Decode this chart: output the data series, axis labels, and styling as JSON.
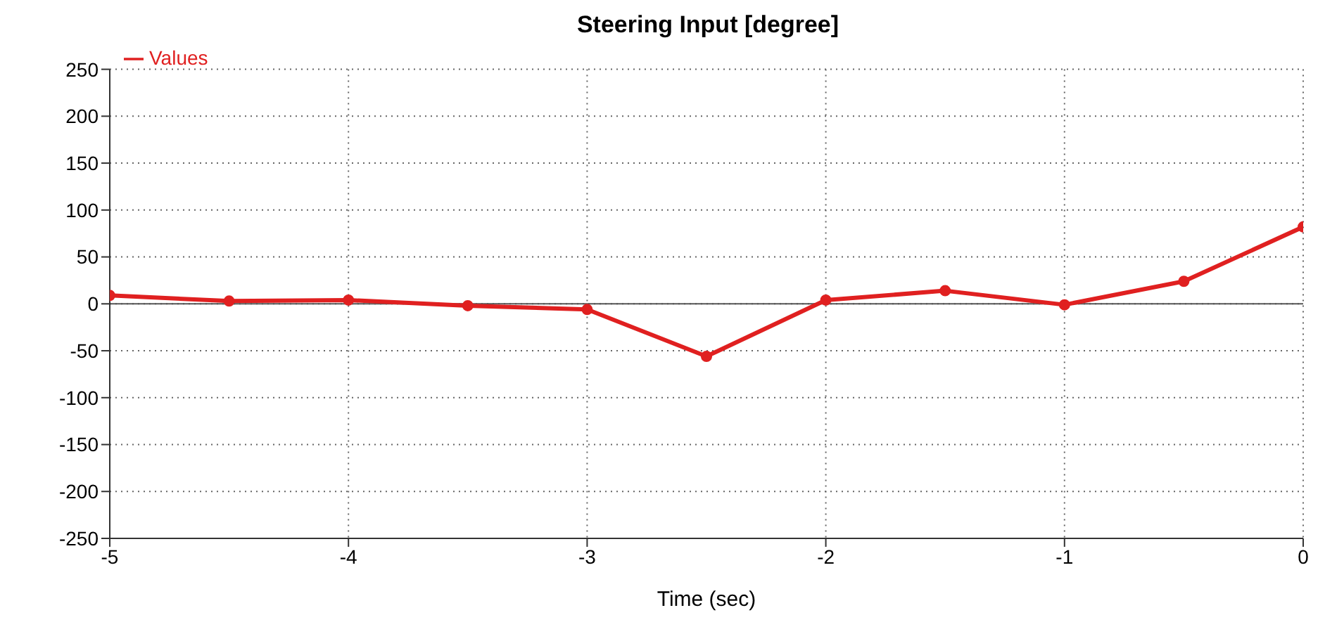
{
  "chart_data": {
    "type": "line",
    "title": "Steering Input [degree]",
    "xlabel": "Time (sec)",
    "x": [
      -5,
      -4.5,
      -4,
      -3.5,
      -3,
      -2.5,
      -2,
      -1.5,
      -1,
      -0.5,
      0
    ],
    "series": [
      {
        "name": "Values",
        "color": "#e02020",
        "values": [
          9,
          3,
          4,
          -2,
          -6,
          -56,
          4,
          14,
          -1,
          24,
          82
        ]
      }
    ],
    "xlim": [
      -5,
      0
    ],
    "xticks": [
      -5,
      -4,
      -3,
      -2,
      -1,
      0
    ],
    "ylim": [
      -250,
      250
    ],
    "yticks": [
      -250,
      -200,
      -150,
      -100,
      -50,
      0,
      50,
      100,
      150,
      200,
      250
    ],
    "ref_lines": [
      {
        "axis": "y",
        "value": 0,
        "color": "#555555",
        "line_style": "solid"
      }
    ],
    "grid": true,
    "legend": "top left",
    "marker": "circle",
    "line_style": "solid"
  }
}
